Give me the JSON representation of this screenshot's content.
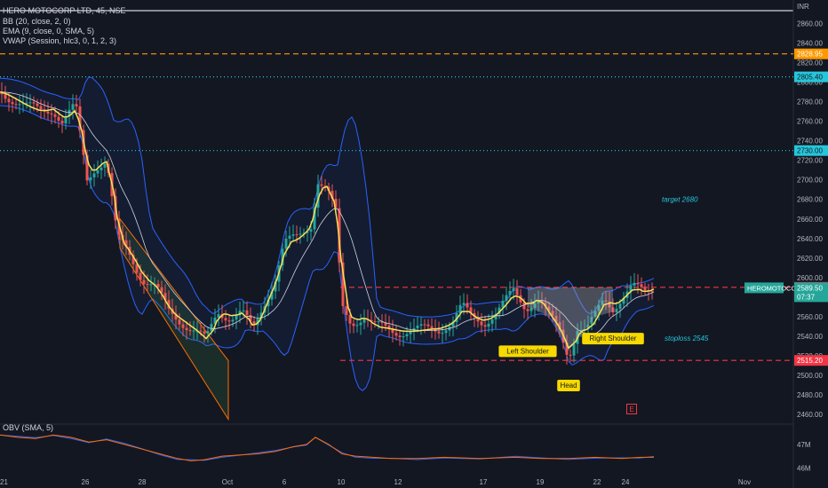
{
  "legend": {
    "symbol": "HERO MOTOCORP LTD, 45, NSE",
    "bb": "BB (20, close, 2, 0)",
    "ema": "EMA (9, close, 0, SMA, 5)",
    "vwap": "VWAP (Session, hlc3, 0, 1, 2, 3)",
    "obv": "OBV (SMA, 5)"
  },
  "currency": "INR",
  "e_marker": "E",
  "colors": {
    "background": "#131722",
    "up": "#26a69a",
    "down": "#ef5350",
    "bb": "#2962ff",
    "ema": "#f7e15a",
    "vwap_line": "#ffffff",
    "level_red": "#f23645",
    "level_orange": "#ff9800",
    "level_teal": "#26c6da",
    "price_tag": "#26a69a",
    "pattern_label_bg": "#f7d900",
    "obv": "#2962ff",
    "obv_ma": "#ff6d00"
  },
  "chart_data": {
    "type": "candlestick",
    "title": "HERO MOTOCORP LTD, 45, NSE",
    "y_axis": {
      "min": 2450,
      "max": 2875,
      "ticks": [
        2460,
        2480,
        2500,
        2520,
        2540,
        2560,
        2580,
        2600,
        2620,
        2640,
        2660,
        2680,
        2700,
        2720,
        2740,
        2760,
        2780,
        2800,
        2820,
        2840,
        2860
      ]
    },
    "x_axis": {
      "ticks": [
        {
          "label": "21",
          "t": 0
        },
        {
          "label": "26",
          "t": 96
        },
        {
          "label": "28",
          "t": 160
        },
        {
          "label": "Oct",
          "t": 256
        },
        {
          "label": "6",
          "t": 320
        },
        {
          "label": "10",
          "t": 384
        },
        {
          "label": "12",
          "t": 448
        },
        {
          "label": "17",
          "t": 544
        },
        {
          "label": "19",
          "t": 608
        },
        {
          "label": "22",
          "t": 672
        },
        {
          "label": "24",
          "t": 704
        },
        {
          "label": "Nov",
          "t": 838
        }
      ]
    },
    "close_path": [
      [
        0,
        2790
      ],
      [
        15,
        2783
      ],
      [
        30,
        2775
      ],
      [
        45,
        2770
      ],
      [
        60,
        2773
      ],
      [
        70,
        2760
      ],
      [
        85,
        2775
      ],
      [
        98,
        2700
      ],
      [
        108,
        2715
      ],
      [
        120,
        2720
      ],
      [
        132,
        2640
      ],
      [
        145,
        2625
      ],
      [
        160,
        2600
      ],
      [
        175,
        2590
      ],
      [
        190,
        2565
      ],
      [
        205,
        2555
      ],
      [
        220,
        2545
      ],
      [
        232,
        2535
      ],
      [
        245,
        2565
      ],
      [
        260,
        2560
      ],
      [
        272,
        2565
      ],
      [
        285,
        2545
      ],
      [
        298,
        2575
      ],
      [
        310,
        2600
      ],
      [
        320,
        2635
      ],
      [
        335,
        2640
      ],
      [
        350,
        2655
      ],
      [
        358,
        2700
      ],
      [
        368,
        2690
      ],
      [
        378,
        2665
      ],
      [
        385,
        2570
      ],
      [
        395,
        2555
      ],
      [
        410,
        2560
      ],
      [
        420,
        2550
      ],
      [
        435,
        2548
      ],
      [
        450,
        2545
      ],
      [
        465,
        2545
      ],
      [
        480,
        2547
      ],
      [
        495,
        2548
      ],
      [
        510,
        2555
      ],
      [
        520,
        2570
      ],
      [
        530,
        2560
      ],
      [
        545,
        2555
      ],
      [
        560,
        2565
      ],
      [
        578,
        2585
      ],
      [
        592,
        2570
      ],
      [
        605,
        2580
      ],
      [
        618,
        2560
      ],
      [
        630,
        2545
      ],
      [
        640,
        2520
      ],
      [
        650,
        2550
      ],
      [
        660,
        2545
      ],
      [
        670,
        2560
      ],
      [
        680,
        2578
      ],
      [
        690,
        2570
      ],
      [
        700,
        2580
      ],
      [
        712,
        2590
      ],
      [
        725,
        2584
      ],
      [
        736,
        2590
      ]
    ],
    "levels": [
      {
        "label": "2828.95",
        "value": 2828.95,
        "style": "dashed",
        "color": "#ff9800"
      },
      {
        "label": "2805.40",
        "value": 2805.4,
        "style": "dotted",
        "color": "#26c6da"
      },
      {
        "label": "2730.00",
        "value": 2730.0,
        "style": "dotted",
        "color": "#26c6da"
      },
      {
        "label": "2590.00",
        "value": 2590.0,
        "style": "dashed",
        "color": "#f23645"
      },
      {
        "label": "2515.20",
        "value": 2515.2,
        "style": "dashed",
        "color": "#f23645"
      }
    ],
    "last_price": {
      "symbol": "HEROMOTOCO",
      "price": "2589.50",
      "countdown": "07:37"
    },
    "annotations": [
      {
        "text": "target 2680",
        "value": 2680,
        "t": 745
      },
      {
        "text": "stoploss 2545",
        "value": 2538,
        "t": 748
      },
      {
        "text": "Left Shoulder",
        "value": 2525,
        "t": 594
      },
      {
        "text": "Head",
        "value": 2490,
        "t": 640
      },
      {
        "text": "Right Shoulder",
        "value": 2538,
        "t": 690
      }
    ],
    "obv": {
      "ticks": [
        {
          "label": "47M",
          "value": 47
        },
        {
          "label": "46M",
          "value": 46
        }
      ],
      "values": [
        [
          0,
          47.4
        ],
        [
          20,
          47.3
        ],
        [
          40,
          47.25
        ],
        [
          60,
          47.4
        ],
        [
          80,
          47.3
        ],
        [
          100,
          47.1
        ],
        [
          120,
          47.2
        ],
        [
          140,
          47.0
        ],
        [
          160,
          46.8
        ],
        [
          180,
          46.6
        ],
        [
          200,
          46.4
        ],
        [
          215,
          46.3
        ],
        [
          230,
          46.35
        ],
        [
          250,
          46.5
        ],
        [
          270,
          46.55
        ],
        [
          290,
          46.6
        ],
        [
          310,
          46.7
        ],
        [
          330,
          46.9
        ],
        [
          345,
          47.0
        ],
        [
          355,
          47.3
        ],
        [
          370,
          47.0
        ],
        [
          385,
          46.6
        ],
        [
          400,
          46.5
        ],
        [
          420,
          46.45
        ],
        [
          440,
          46.4
        ],
        [
          470,
          46.4
        ],
        [
          500,
          46.45
        ],
        [
          540,
          46.4
        ],
        [
          580,
          46.45
        ],
        [
          610,
          46.4
        ],
        [
          640,
          46.4
        ],
        [
          670,
          46.45
        ],
        [
          700,
          46.4
        ],
        [
          720,
          46.45
        ],
        [
          736,
          46.45
        ]
      ]
    }
  }
}
